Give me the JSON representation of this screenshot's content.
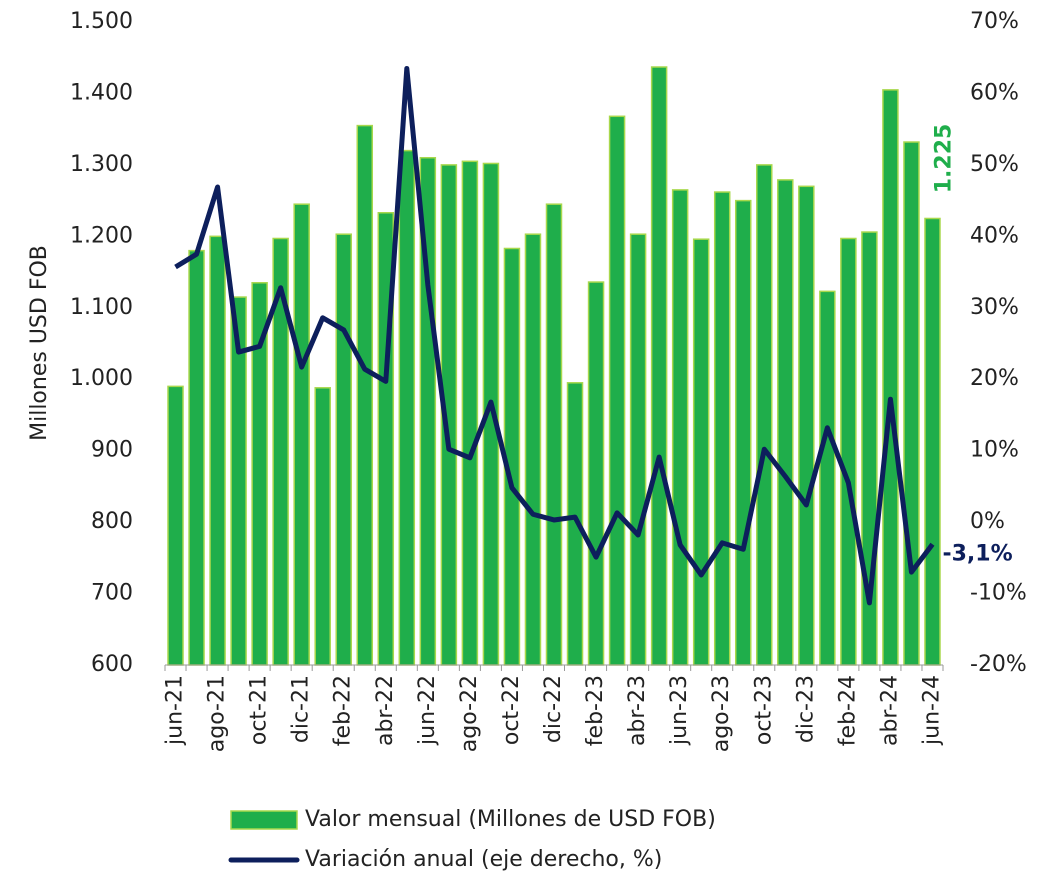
{
  "chart_data": {
    "type": "bar",
    "y_label": "Millones USD FOB",
    "categories": [
      "jun-21",
      null,
      "ago-21",
      null,
      "oct-21",
      null,
      "dic-21",
      null,
      "feb-22",
      null,
      "abr-22",
      null,
      "jun-22",
      null,
      "ago-22",
      null,
      "oct-22",
      null,
      "dic-22",
      null,
      "feb-23",
      null,
      "abr-23",
      null,
      "jun-23",
      null,
      "ago-23",
      null,
      "oct-23",
      null,
      "dic-23",
      null,
      "feb-24",
      null,
      "abr-24",
      null,
      "jun-24"
    ],
    "series": [
      {
        "name": "Valor mensual (Millones de USD FOB)",
        "type": "bar",
        "color": "#1fae4b",
        "edge": "#a8d84c",
        "values": [
          990,
          1180,
          1200,
          1115,
          1135,
          1197,
          1245,
          988,
          1203,
          1355,
          1233,
          1320,
          1310,
          1300,
          1305,
          1302,
          1183,
          1203,
          1245,
          995,
          1136,
          1368,
          1203,
          1437,
          1265,
          1196,
          1262,
          1250,
          1300,
          1279,
          1270,
          1123,
          1197,
          1206,
          1405,
          1332,
          1225
        ],
        "value_labels": [
          null,
          null,
          null,
          null,
          null,
          null,
          null,
          null,
          null,
          null,
          null,
          null,
          null,
          null,
          null,
          null,
          null,
          null,
          null,
          null,
          null,
          null,
          null,
          null,
          null,
          null,
          null,
          null,
          null,
          null,
          null,
          null,
          null,
          null,
          null,
          null,
          "1.225"
        ]
      },
      {
        "name": "Variación anual (eje derecho, %)",
        "type": "line",
        "axis": "y2",
        "color": "#0d1f5c",
        "values": [
          35.7,
          37.5,
          46.9,
          23.8,
          24.6,
          32.8,
          21.7,
          28.6,
          26.9,
          21.4,
          19.7,
          63.5,
          33.2,
          10.2,
          9.0,
          16.8,
          4.8,
          1.1,
          0.3,
          0.7,
          -4.9,
          1.3,
          -1.8,
          9.1,
          -3.2,
          -7.4,
          -2.9,
          -3.8,
          10.2,
          6.4,
          2.4,
          13.2,
          5.5,
          -11.3,
          17.2,
          -7.0,
          -3.1
        ],
        "value_labels": [
          null,
          null,
          null,
          null,
          null,
          null,
          null,
          null,
          null,
          null,
          null,
          null,
          null,
          null,
          null,
          null,
          null,
          null,
          null,
          null,
          null,
          null,
          null,
          null,
          null,
          null,
          null,
          null,
          null,
          null,
          null,
          null,
          null,
          null,
          null,
          null,
          "-3,1%"
        ]
      }
    ],
    "ylim": [
      600,
      1500
    ],
    "yticks": [
      600,
      700,
      800,
      900,
      {
        "value": 1000,
        "label": "1.000"
      },
      {
        "value": 1100,
        "label": "1.100"
      },
      {
        "value": 1200,
        "label": "1.200"
      },
      {
        "value": 1300,
        "label": "1.300"
      },
      {
        "value": 1400,
        "label": "1.400"
      },
      {
        "value": 1500,
        "label": "1.500"
      }
    ],
    "y2lim": [
      -20,
      70
    ],
    "y2ticks": [
      {
        "value": -20,
        "label": "-20%"
      },
      {
        "value": -10,
        "label": "-10%"
      },
      {
        "value": 0,
        "label": "0%"
      },
      {
        "value": 10,
        "label": "10%"
      },
      {
        "value": 20,
        "label": "20%"
      },
      {
        "value": 30,
        "label": "30%"
      },
      {
        "value": 40,
        "label": "40%"
      },
      {
        "value": 50,
        "label": "50%"
      },
      {
        "value": 60,
        "label": "60%"
      },
      {
        "value": 70,
        "label": "70%"
      }
    ],
    "legend": "bottom"
  }
}
